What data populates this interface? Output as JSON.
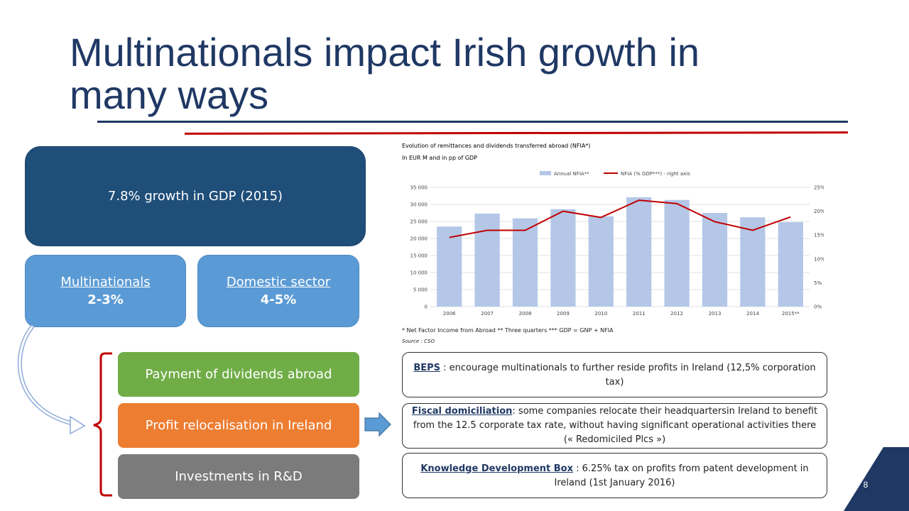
{
  "slide": {
    "title": "Multinationals impact Irish growth in many ways",
    "page_number": "8"
  },
  "left": {
    "gdp_box": "7.8% growth in GDP (2015)",
    "multinationals_label": "Multinationals",
    "multinationals_value": "2-3%",
    "domestic_label": "Domestic sector",
    "domestic_value": "4-5%",
    "items": [
      "Payment of dividends abroad",
      "Profit relocalisation in Ireland",
      "Investments in R&D"
    ]
  },
  "right": {
    "boxes": [
      {
        "keyword": "BEPS",
        "text": " : encourage multinationals to further reside profits in Ireland (12,5% corporation tax)"
      },
      {
        "keyword": "Fiscal domiciliation",
        "text": ": some companies relocate their headquartersin Ireland to benefit from the 12.5 corporate tax rate, without having significant operational activities there (« Redomiciled Plcs »)"
      },
      {
        "keyword": "Knowledge Development Box",
        "text": " : 6.25% tax on profits from patent development in Ireland (1st January 2016)"
      }
    ]
  },
  "colors": {
    "title": "#1f3864",
    "gdp_box": "#1f4e79",
    "sub_box": "#5b9bd5",
    "dividends": "#70ad47",
    "relocalisation": "#ed7d31",
    "rnd": "#7b7b7b",
    "bracket": "#c00000",
    "bars": "#b4c7e7",
    "line": "#c00000"
  },
  "chart_data": {
    "type": "bar",
    "title": "Evolution of remittances and dividends transferred abroad (NFIA*)",
    "subtitle": "In EUR M and in pp of GDP",
    "categories": [
      "2006",
      "2007",
      "2008",
      "2009",
      "2010",
      "2011",
      "2012",
      "2013",
      "2014",
      "2015**"
    ],
    "series": [
      {
        "name": "Annual NFIA**",
        "type": "bar",
        "axis": "left",
        "values": [
          23500,
          27300,
          25900,
          28600,
          26500,
          32100,
          31300,
          27500,
          26200,
          24800
        ]
      },
      {
        "name": "NFIA (% GDP***) - right axis",
        "type": "line",
        "axis": "right",
        "values": [
          14.5,
          16.0,
          16.0,
          20.0,
          18.7,
          22.3,
          21.6,
          17.8,
          16.0,
          18.8
        ]
      }
    ],
    "ylim": [
      0,
      35000
    ],
    "yticks": [
      "0",
      "5 000",
      "10 000",
      "15 000",
      "20 000",
      "25 000",
      "30 000",
      "35 000"
    ],
    "y2lim": [
      0,
      25
    ],
    "y2ticks": [
      "0%",
      "5%",
      "10%",
      "15%",
      "20%",
      "25%"
    ],
    "footnote": "* Net Factor Income from Abroad ** Three quarters *** GDP = GNP + NFIA",
    "source": "Source : CSO",
    "grid": true,
    "legend": "top"
  }
}
